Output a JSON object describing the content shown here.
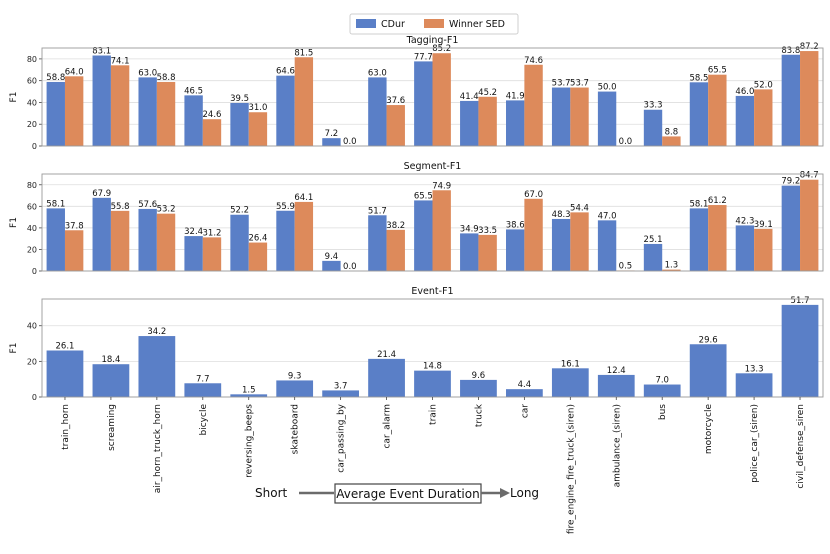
{
  "chart_data": {
    "type": "bar",
    "categories": [
      "train_horn",
      "screaming",
      "air_horn_truck_horn",
      "bicycle",
      "reversing_beeps",
      "skateboard",
      "car_passing_by",
      "car_alarm",
      "train",
      "truck",
      "car",
      "fire_engine_fire_truck_(siren)",
      "ambulance_(siren)",
      "bus",
      "motorcycle",
      "police_car_(siren)",
      "civil_defense_siren"
    ],
    "colors": {
      "CDur": "#5a7fc7",
      "Winner SED": "#dd8a5b"
    },
    "legend": {
      "placement": "top-center",
      "entries": [
        "CDur",
        "Winner SED"
      ]
    },
    "panels": [
      {
        "title": "Tagging-F1",
        "ylabel": "F1",
        "ylim": [
          0,
          90
        ],
        "yticks": [
          0,
          20,
          40,
          60,
          80
        ],
        "series": [
          {
            "name": "CDur",
            "values": [
              58.8,
              83.1,
              63.0,
              46.5,
              39.5,
              64.6,
              7.2,
              63.0,
              77.7,
              41.4,
              41.9,
              53.7,
              50.0,
              33.3,
              58.5,
              46.0,
              83.8
            ]
          },
          {
            "name": "Winner SED",
            "values": [
              64.0,
              74.1,
              58.8,
              24.6,
              31.0,
              81.5,
              0.0,
              37.6,
              85.2,
              45.2,
              74.6,
              53.7,
              0.0,
              8.8,
              65.5,
              52.0,
              87.2
            ]
          }
        ]
      },
      {
        "title": "Segment-F1",
        "ylabel": "F1",
        "ylim": [
          0,
          90
        ],
        "yticks": [
          0,
          20,
          40,
          60,
          80
        ],
        "series": [
          {
            "name": "CDur",
            "values": [
              58.1,
              67.9,
              57.6,
              32.4,
              52.2,
              55.9,
              9.4,
              51.7,
              65.5,
              34.9,
              38.6,
              48.3,
              47.0,
              25.1,
              58.1,
              42.3,
              79.2
            ]
          },
          {
            "name": "Winner SED",
            "values": [
              37.8,
              55.8,
              53.2,
              31.2,
              26.4,
              64.1,
              0.0,
              38.2,
              74.9,
              33.5,
              67.0,
              54.4,
              0.5,
              1.3,
              61.2,
              39.1,
              84.7
            ]
          }
        ]
      },
      {
        "title": "Event-F1",
        "ylabel": "F1",
        "ylim": [
          0,
          55
        ],
        "yticks": [
          0,
          20,
          40
        ],
        "series": [
          {
            "name": "CDur",
            "values": [
              26.1,
              18.4,
              34.2,
              7.7,
              1.5,
              9.3,
              3.7,
              21.4,
              14.8,
              9.6,
              4.4,
              16.1,
              12.4,
              7.0,
              29.6,
              13.3,
              51.7
            ]
          }
        ]
      }
    ],
    "annotation": {
      "left": "Short",
      "center": "Average Event Duration",
      "right": "Long"
    }
  }
}
